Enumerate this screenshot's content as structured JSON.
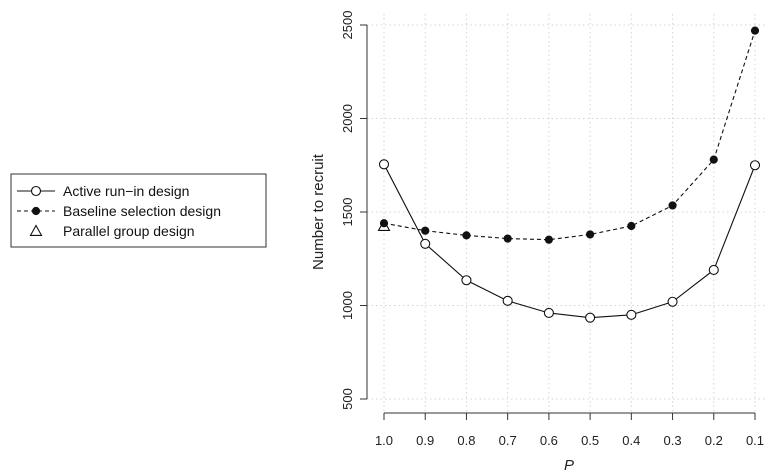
{
  "chart_data": {
    "type": "line",
    "title": "",
    "xlabel": "P",
    "ylabel": "Number to recruit",
    "x": [
      1.0,
      0.9,
      0.8,
      0.7,
      0.6,
      0.5,
      0.4,
      0.3,
      0.2,
      0.1
    ],
    "x_reversed": true,
    "xlim": [
      1.0,
      0.1
    ],
    "ylim": [
      500,
      2500
    ],
    "x_ticks": [
      "1.0",
      "0.9",
      "0.8",
      "0.7",
      "0.6",
      "0.5",
      "0.4",
      "0.3",
      "0.2",
      "0.1"
    ],
    "y_ticks": [
      "500",
      "1000",
      "1500",
      "2000",
      "2500"
    ],
    "grid": true,
    "legend_position": "left",
    "series": [
      {
        "name": "Active run−in design",
        "values": [
          1755,
          1330,
          1135,
          1025,
          960,
          935,
          950,
          1020,
          1190,
          1750
        ],
        "marker": "open-circle",
        "line": "solid"
      },
      {
        "name": "Baseline selection design",
        "values": [
          1440,
          1400,
          1375,
          1358,
          1352,
          1380,
          1425,
          1535,
          1780,
          2470
        ],
        "marker": "filled-circle",
        "line": "dashed"
      },
      {
        "name": "Parallel group design",
        "values": [
          1425,
          null,
          null,
          null,
          null,
          null,
          null,
          null,
          null,
          null
        ],
        "marker": "open-triangle",
        "line": "none"
      }
    ]
  }
}
